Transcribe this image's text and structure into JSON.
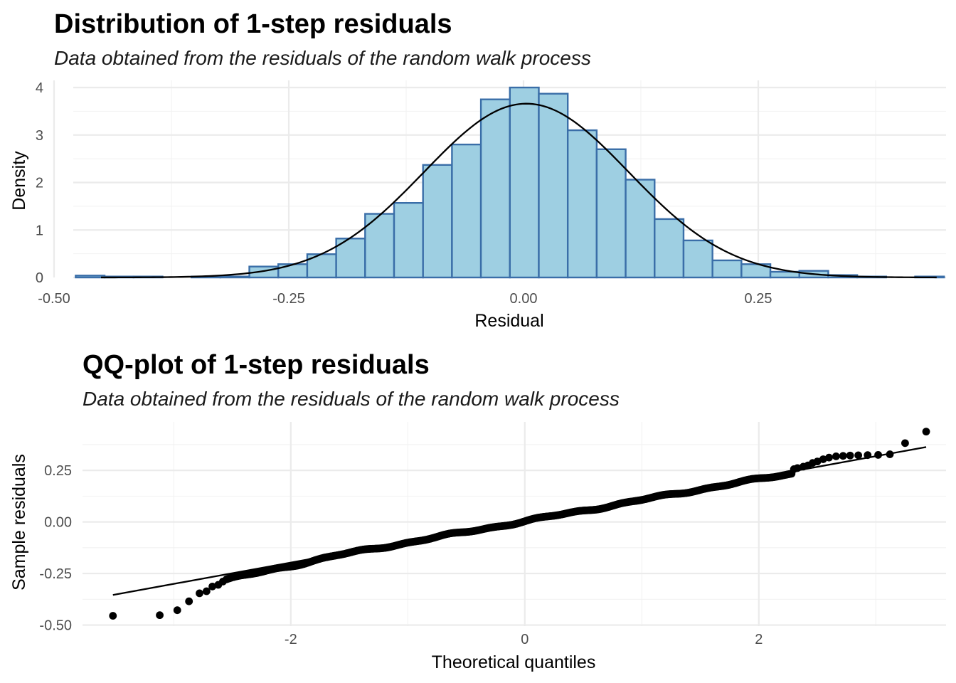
{
  "chart_data": [
    {
      "type": "histogram",
      "title": "Distribution of 1-step residuals",
      "subtitle": "Data obtained from the residuals of the random walk process",
      "xlabel": "Residual",
      "ylabel": "Density",
      "xlim": [
        -0.5,
        0.45
      ],
      "ylim": [
        0,
        4.15
      ],
      "x_ticks": [
        -0.5,
        -0.25,
        0,
        0.25
      ],
      "x_tick_labels": [
        "-0.50",
        "-0.25",
        "0.00",
        "0.25"
      ],
      "y_ticks": [
        0,
        1,
        2,
        3,
        4
      ],
      "y_tick_labels": [
        "0",
        "1",
        "2",
        "3",
        "4"
      ],
      "bin_width": 0.03083,
      "bin_start": -0.477,
      "values": [
        0.04,
        0.02,
        0.02,
        0.0,
        0.02,
        0.02,
        0.23,
        0.28,
        0.49,
        0.82,
        1.34,
        1.57,
        2.37,
        2.8,
        3.75,
        4.0,
        3.87,
        3.1,
        2.7,
        2.06,
        1.23,
        0.78,
        0.36,
        0.28,
        0.12,
        0.14,
        0.05,
        0.02,
        0.0,
        0.02
      ],
      "normal_curve": {
        "mean": 0.003,
        "sd": 0.109
      },
      "fill_color": "#9ecfe2",
      "edge_color": "#3a6ea8",
      "curve_color": "#000000"
    },
    {
      "type": "scatter",
      "subtype": "qq",
      "title": "QQ-plot of 1-step residuals",
      "subtitle": "Data obtained from the residuals of the random walk process",
      "xlabel": "Theoretical quantiles",
      "ylabel": "Sample residuals",
      "xlim": [
        -3.78,
        3.6
      ],
      "ylim": [
        -0.505,
        0.485
      ],
      "x_ticks": [
        -2,
        0,
        2
      ],
      "x_tick_labels": [
        "-2",
        "0",
        "2"
      ],
      "y_ticks": [
        -0.5,
        -0.25,
        0,
        0.25
      ],
      "y_tick_labels": [
        "-0.50",
        "-0.25",
        "0.00",
        "0.25"
      ],
      "reference_line": {
        "x": [
          -3.52,
          3.43
        ],
        "y": [
          -0.354,
          0.363
        ]
      },
      "tail_points": [
        {
          "x": -3.52,
          "y": -0.455
        },
        {
          "x": -3.12,
          "y": -0.452
        },
        {
          "x": -2.97,
          "y": -0.428
        },
        {
          "x": -2.87,
          "y": -0.385
        },
        {
          "x": -2.78,
          "y": -0.346
        },
        {
          "x": -2.72,
          "y": -0.336
        },
        {
          "x": -2.67,
          "y": -0.313
        },
        {
          "x": -2.62,
          "y": -0.305
        },
        {
          "x": -2.58,
          "y": -0.289
        },
        {
          "x": 2.3,
          "y": 0.256
        },
        {
          "x": 2.33,
          "y": 0.261
        },
        {
          "x": 2.38,
          "y": 0.268
        },
        {
          "x": 2.42,
          "y": 0.274
        },
        {
          "x": 2.46,
          "y": 0.286
        },
        {
          "x": 2.5,
          "y": 0.293
        },
        {
          "x": 2.55,
          "y": 0.304
        },
        {
          "x": 2.6,
          "y": 0.312
        },
        {
          "x": 2.66,
          "y": 0.318
        },
        {
          "x": 2.72,
          "y": 0.32
        },
        {
          "x": 2.78,
          "y": 0.322
        },
        {
          "x": 2.85,
          "y": 0.323
        },
        {
          "x": 2.93,
          "y": 0.324
        },
        {
          "x": 3.02,
          "y": 0.325
        },
        {
          "x": 3.12,
          "y": 0.328
        },
        {
          "x": 3.25,
          "y": 0.382
        },
        {
          "x": 3.43,
          "y": 0.438
        }
      ],
      "point_color": "#000000"
    }
  ]
}
